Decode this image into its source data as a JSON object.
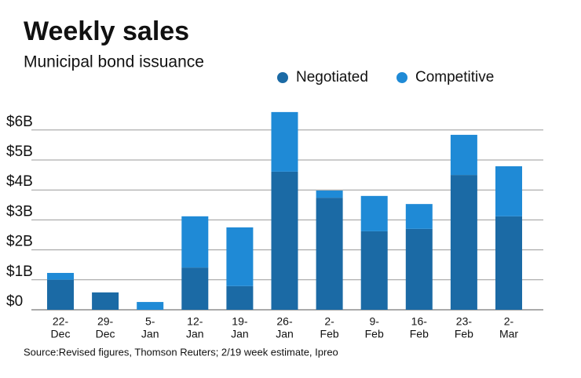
{
  "chart_data": {
    "type": "stacked_bar",
    "title": "Weekly sales",
    "subtitle": "Municipal bond issuance",
    "source": "Source:Revised figures, Thomson Reuters; 2/19 week estimate, Ipreo",
    "categories": [
      [
        "22-",
        "Dec"
      ],
      [
        "29-",
        "Dec"
      ],
      [
        "5-",
        "Jan"
      ],
      [
        "12-",
        "Jan"
      ],
      [
        "19-",
        "Jan"
      ],
      [
        "26-",
        "Jan"
      ],
      [
        "2-",
        "Feb"
      ],
      [
        "9-",
        "Feb"
      ],
      [
        "16-",
        "Feb"
      ],
      [
        "23-",
        "Feb"
      ],
      [
        "2-",
        "Mar"
      ]
    ],
    "series": [
      {
        "name": "Negotiated",
        "color": "#1b6aa5",
        "values": [
          1.0,
          0.58,
          0,
          1.41,
          0.79,
          4.61,
          3.74,
          2.62,
          2.7,
          4.5,
          3.12
        ]
      },
      {
        "name": "Competitive",
        "color": "#1f8ad6",
        "values": [
          0.23,
          0,
          0.26,
          1.71,
          1.96,
          1.99,
          0.24,
          1.18,
          0.83,
          1.34,
          1.67
        ]
      }
    ],
    "ylim": [
      0,
      6.5
    ],
    "yticks": [
      {
        "value": 0,
        "label": "$0"
      },
      {
        "value": 1,
        "label": "$1B"
      },
      {
        "value": 2,
        "label": "$2B"
      },
      {
        "value": 3,
        "label": "$3B"
      },
      {
        "value": 4,
        "label": "$4B"
      },
      {
        "value": 5,
        "label": "$5B"
      },
      {
        "value": 6,
        "label": "$6B"
      }
    ],
    "grid": true,
    "legend": "top-right"
  }
}
